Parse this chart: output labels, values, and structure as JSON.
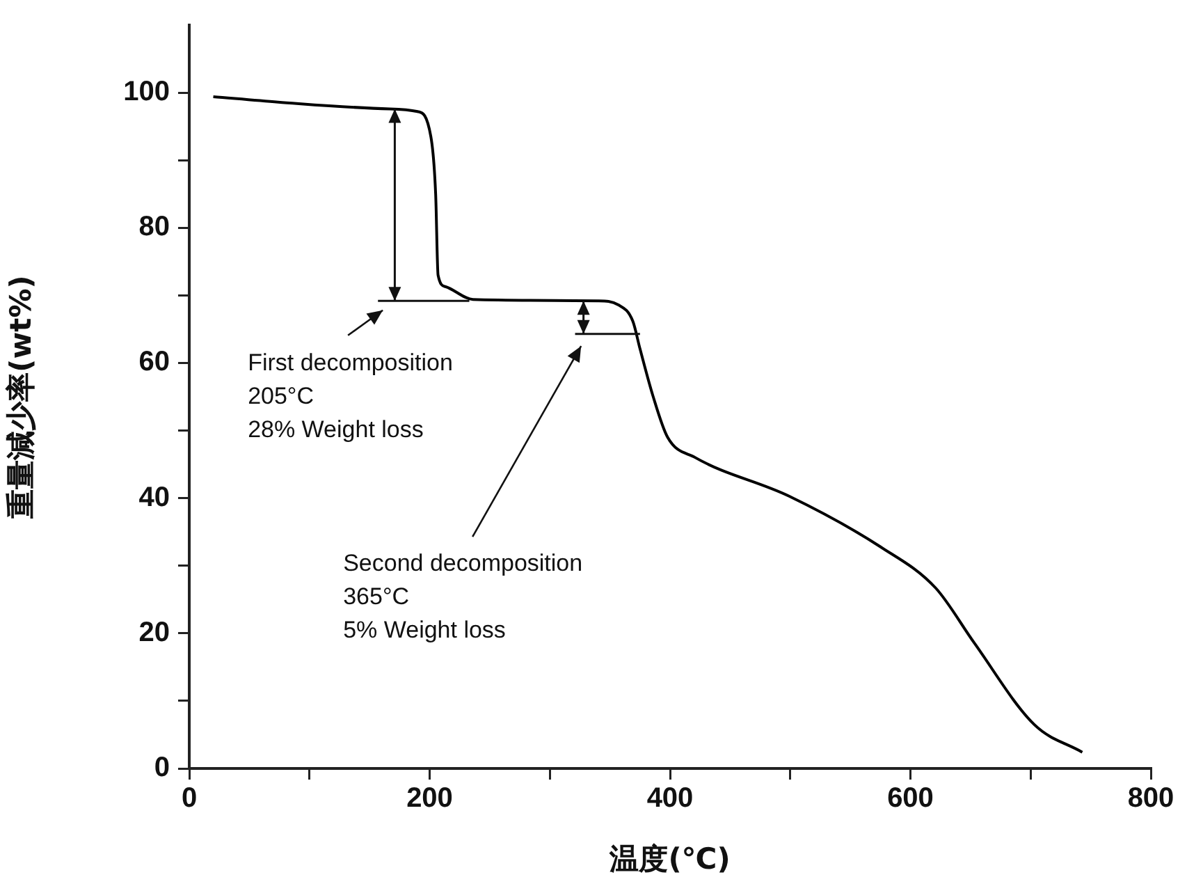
{
  "chart_data": {
    "type": "line",
    "xlabel": "温度(℃)",
    "ylabel": "重量減少率(wt%)",
    "xlim": [
      0,
      800
    ],
    "ylim": [
      0,
      110
    ],
    "xticks": [
      0,
      {
        "value": 100,
        "label": null
      },
      200,
      {
        "value": 300,
        "label": null
      },
      400,
      {
        "value": 500,
        "label": null
      },
      600,
      {
        "value": 700,
        "label": null
      },
      800
    ],
    "yticks": [
      0,
      {
        "value": 10,
        "label": null
      },
      20,
      {
        "value": 30,
        "label": null
      },
      40,
      {
        "value": 50,
        "label": null
      },
      60,
      {
        "value": 70,
        "label": null
      },
      80,
      {
        "value": 90,
        "label": null
      },
      100
    ],
    "marker": "none",
    "line_style": "solid",
    "series": [
      {
        "color": "#000000",
        "x": [
          20,
          74,
          167,
          190,
          201,
          205,
          207,
          213,
          236,
          340,
          357,
          369,
          375,
          386,
          398,
          421,
          499,
          575,
          621,
          653,
          703,
          743
        ],
        "values": [
          99.4,
          98.6,
          97.6,
          97.2,
          93.5,
          85,
          73,
          71.3,
          69.4,
          69.2,
          68.6,
          66.2,
          62.1,
          55,
          49,
          46,
          40.3,
          32.8,
          26.7,
          18.6,
          6.5,
          2.4
        ]
      }
    ],
    "annotations": [
      "First decomposition\n205°C\n28% Weight loss",
      "Second decomposition\n365°C\n5% Weight loss"
    ]
  }
}
